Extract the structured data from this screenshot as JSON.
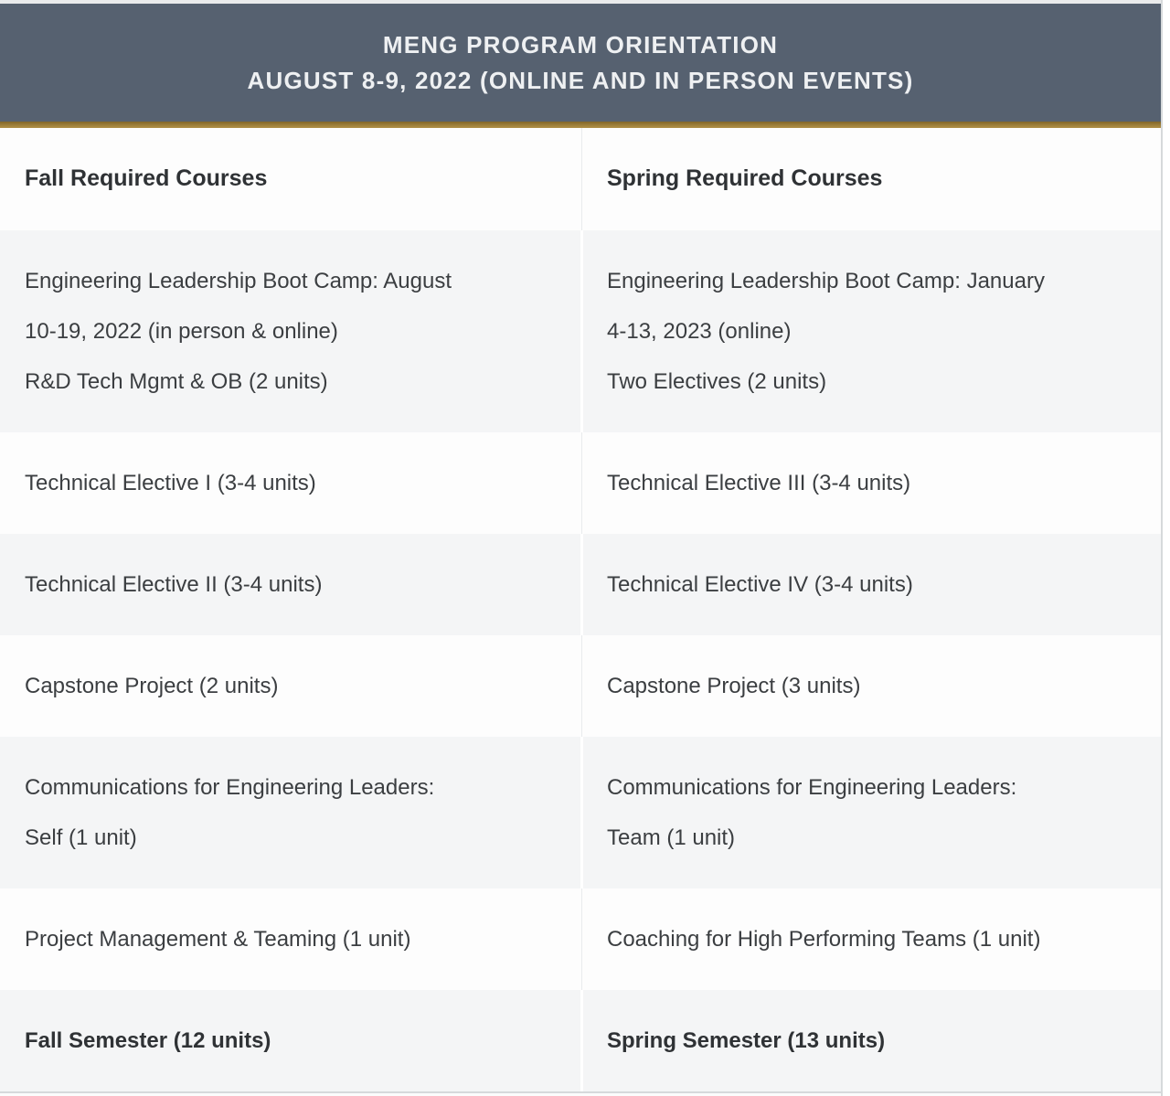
{
  "banner": {
    "line1": "MENG PROGRAM ORIENTATION",
    "line2": "AUGUST 8-9, 2022 (ONLINE AND IN PERSON EVENTS)"
  },
  "table": {
    "column_headers": {
      "fall": "Fall Required Courses",
      "spring": "Spring Required Courses"
    },
    "rows": [
      {
        "fall": [
          "Engineering Leadership Boot Camp: August",
          "10-19, 2022 (in person & online)",
          "R&D Tech Mgmt & OB (2 units)"
        ],
        "spring": [
          "Engineering Leadership Boot Camp: January",
          "4-13, 2023 (online)",
          "Two Electives (2 units)"
        ]
      },
      {
        "fall": [
          "Technical Elective I (3-4 units)"
        ],
        "spring": [
          "Technical Elective III (3-4 units)"
        ]
      },
      {
        "fall": [
          "Technical Elective II (3-4 units)"
        ],
        "spring": [
          "Technical Elective IV (3-4 units)"
        ]
      },
      {
        "fall": [
          "Capstone Project (2 units)"
        ],
        "spring": [
          "Capstone Project (3 units)"
        ]
      },
      {
        "fall": [
          "Communications for Engineering Leaders:",
          "Self (1 unit)"
        ],
        "spring": [
          "Communications for Engineering Leaders:",
          "Team (1 unit)"
        ]
      },
      {
        "fall": [
          "Project Management & Teaming (1 unit)"
        ],
        "spring": [
          "Coaching for High Performing Teams (1 unit)"
        ]
      },
      {
        "fall": [
          "Fall Semester (12 units)"
        ],
        "spring": [
          "Spring Semester (13 units)"
        ]
      }
    ]
  },
  "colors": {
    "banner_bg": "#566170",
    "accent_gold": "#9c7e3a",
    "alt_row_bg": "#f4f5f6",
    "body_text": "#3b3e41"
  }
}
